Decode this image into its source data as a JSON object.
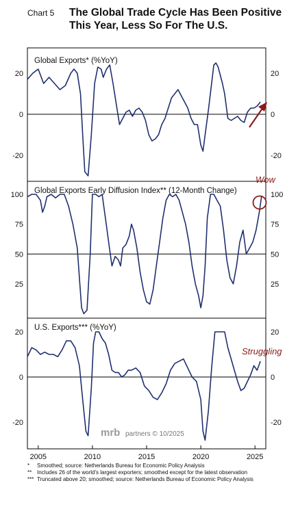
{
  "header": {
    "chart_label": "Chart 5",
    "title": "The Global Trade Cycle Has Been Positive This Year, Less So For The U.S."
  },
  "watermark": {
    "brand": "mrb",
    "suffix": "partners © 10/2025"
  },
  "footnotes": [
    {
      "mark": "*",
      "text": "Smoothed; source: Netherlands Bureau for Economic Policy Analysis"
    },
    {
      "mark": "**",
      "text": "Includes 26 of the world's largest exporters; smoothed except for the latest observation"
    },
    {
      "mark": "***",
      "text": "Truncated above 20; smoothed; source: Netherlands Bureau of Economic Policy Analysis"
    }
  ],
  "colors": {
    "line": "#1f2f6e",
    "annotation": "#8b1a1a",
    "axis": "#000000"
  },
  "chart_data": [
    {
      "type": "line",
      "title": "Global Exports* (%YoY)",
      "ylim": [
        -30,
        27
      ],
      "yticks": [
        20,
        0,
        -20
      ],
      "reference_line": 0,
      "annotations": [
        {
          "type": "arrow",
          "text": ""
        }
      ],
      "x": [
        2004.0,
        2004.5,
        2005.0,
        2005.5,
        2006.0,
        2006.5,
        2007.0,
        2007.5,
        2008.0,
        2008.3,
        2008.6,
        2008.9,
        2009.1,
        2009.3,
        2009.6,
        2009.9,
        2010.2,
        2010.5,
        2010.8,
        2011.0,
        2011.3,
        2011.6,
        2011.9,
        2012.2,
        2012.5,
        2012.8,
        2013.1,
        2013.4,
        2013.7,
        2014.0,
        2014.3,
        2014.6,
        2014.9,
        2015.2,
        2015.5,
        2015.8,
        2016.1,
        2016.4,
        2016.7,
        2017.0,
        2017.3,
        2017.6,
        2017.9,
        2018.2,
        2018.5,
        2018.8,
        2019.1,
        2019.4,
        2019.7,
        2020.0,
        2020.2,
        2020.4,
        2020.7,
        2021.0,
        2021.2,
        2021.4,
        2021.6,
        2021.8,
        2022.0,
        2022.2,
        2022.5,
        2022.8,
        2023.1,
        2023.4,
        2023.7,
        2024.0,
        2024.3,
        2024.6,
        2024.9,
        2025.2,
        2025.5
      ],
      "series": [
        {
          "values": [
            17,
            20,
            22,
            15,
            18,
            15,
            12,
            14,
            20,
            22,
            20,
            10,
            -10,
            -28,
            -30,
            -10,
            15,
            23,
            22,
            18,
            22,
            24,
            15,
            5,
            -5,
            -2,
            1,
            2,
            -1,
            2,
            3,
            1,
            -3,
            -10,
            -13,
            -12,
            -10,
            -5,
            -2,
            3,
            8,
            10,
            12,
            9,
            6,
            3,
            -2,
            -5,
            -5,
            -15,
            -18,
            -10,
            2,
            15,
            24,
            25,
            23,
            19,
            15,
            10,
            -2,
            -3,
            -2,
            -1,
            -3,
            -4,
            1,
            3,
            3,
            4,
            6
          ]
        }
      ]
    },
    {
      "type": "line",
      "title": "Global Exports Early Diffusion Index** (12-Month Change)",
      "ylim": [
        0,
        102
      ],
      "yticks": [
        100,
        75,
        50,
        25
      ],
      "reference_line": 50,
      "annotations": [
        {
          "type": "circle",
          "text": "Wow"
        }
      ],
      "x": [
        2004.0,
        2004.4,
        2004.8,
        2005.2,
        2005.4,
        2005.6,
        2005.8,
        2006.2,
        2006.6,
        2007.0,
        2007.4,
        2007.8,
        2008.2,
        2008.6,
        2008.8,
        2009.0,
        2009.2,
        2009.5,
        2009.8,
        2010.0,
        2010.3,
        2010.6,
        2010.9,
        2011.2,
        2011.5,
        2011.8,
        2012.1,
        2012.4,
        2012.6,
        2012.8,
        2013.1,
        2013.4,
        2013.6,
        2013.8,
        2014.1,
        2014.4,
        2014.7,
        2015.0,
        2015.3,
        2015.6,
        2015.9,
        2016.2,
        2016.5,
        2016.8,
        2017.1,
        2017.4,
        2017.7,
        2018.0,
        2018.3,
        2018.6,
        2018.9,
        2019.2,
        2019.5,
        2019.8,
        2020.0,
        2020.2,
        2020.4,
        2020.6,
        2020.9,
        2021.2,
        2021.5,
        2021.8,
        2022.1,
        2022.4,
        2022.7,
        2023.0,
        2023.3,
        2023.6,
        2023.9,
        2024.2,
        2024.5,
        2024.8,
        2025.1,
        2025.4,
        2025.6
      ],
      "series": [
        {
          "values": [
            98,
            100,
            100,
            95,
            85,
            90,
            98,
            100,
            97,
            100,
            100,
            90,
            75,
            55,
            30,
            5,
            0,
            3,
            50,
            100,
            100,
            98,
            100,
            80,
            60,
            40,
            48,
            45,
            40,
            55,
            58,
            65,
            75,
            70,
            55,
            35,
            20,
            10,
            8,
            20,
            40,
            60,
            80,
            95,
            100,
            98,
            100,
            95,
            85,
            75,
            60,
            40,
            25,
            15,
            5,
            15,
            40,
            80,
            100,
            100,
            95,
            90,
            70,
            45,
            30,
            25,
            40,
            60,
            70,
            50,
            55,
            60,
            70,
            85,
            98
          ]
        }
      ]
    },
    {
      "type": "line",
      "title": "U.S. Exports*** (%YoY)",
      "ylim": [
        -28,
        22
      ],
      "yticks": [
        20,
        0,
        -20
      ],
      "reference_line": 0,
      "annotations": [
        {
          "type": "text",
          "text": "Struggling"
        }
      ],
      "x": [
        2004.0,
        2004.4,
        2004.8,
        2005.2,
        2005.6,
        2006.0,
        2006.4,
        2006.8,
        2007.2,
        2007.6,
        2008.0,
        2008.4,
        2008.8,
        2009.1,
        2009.4,
        2009.6,
        2009.9,
        2010.1,
        2010.3,
        2010.6,
        2010.9,
        2011.2,
        2011.5,
        2011.8,
        2012.1,
        2012.4,
        2012.7,
        2013.0,
        2013.3,
        2013.6,
        2014.0,
        2014.4,
        2014.8,
        2015.2,
        2015.6,
        2016.0,
        2016.4,
        2016.8,
        2017.2,
        2017.6,
        2018.0,
        2018.4,
        2018.8,
        2019.2,
        2019.6,
        2020.0,
        2020.2,
        2020.4,
        2020.7,
        2021.0,
        2021.3,
        2021.6,
        2021.9,
        2022.2,
        2022.5,
        2022.8,
        2023.1,
        2023.4,
        2023.7,
        2024.0,
        2024.3,
        2024.6,
        2024.9,
        2025.2,
        2025.5
      ],
      "series": [
        {
          "values": [
            9,
            13,
            12,
            10,
            11,
            10,
            10,
            9,
            12,
            16,
            16,
            13,
            5,
            -10,
            -24,
            -26,
            -5,
            15,
            20,
            20,
            17,
            15,
            10,
            3,
            2,
            2,
            0,
            1,
            3,
            3,
            4,
            2,
            -4,
            -6,
            -9,
            -10,
            -7,
            -3,
            3,
            6,
            7,
            8,
            4,
            0,
            -2,
            -10,
            -24,
            -28,
            -15,
            4,
            20,
            20,
            20,
            20,
            13,
            8,
            3,
            -2,
            -6,
            -5,
            -2,
            1,
            5,
            3,
            7
          ]
        }
      ]
    }
  ],
  "x_axis": {
    "ticks": [
      "2005",
      "2010",
      "2015",
      "2020",
      "2025"
    ],
    "range": [
      2004,
      2026
    ]
  }
}
